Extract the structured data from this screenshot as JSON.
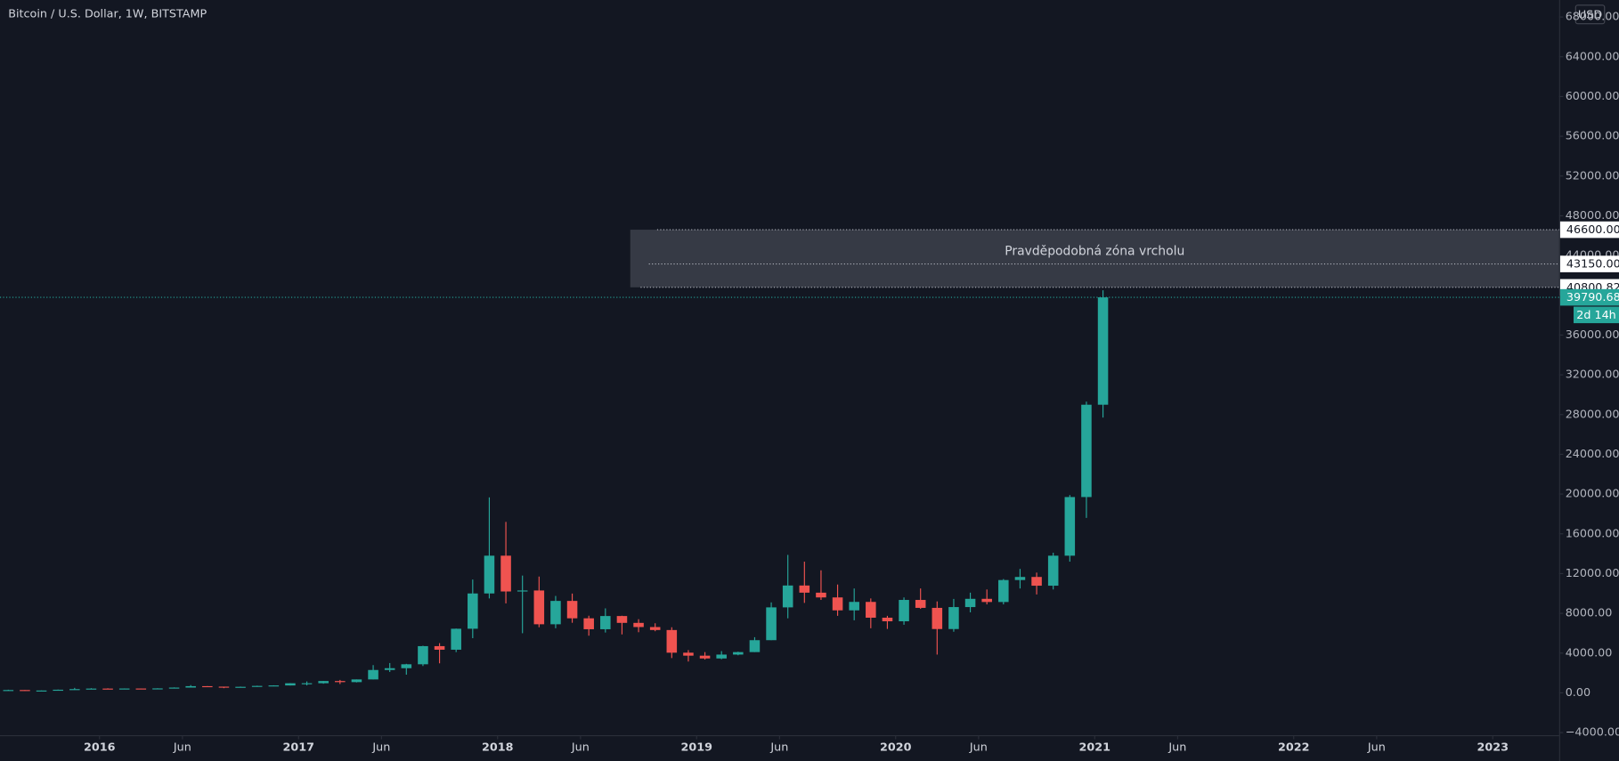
{
  "chart_data": {
    "type": "candlestick",
    "title": "Bitcoin / U.S. Dollar, 1W, BITSTAMP",
    "currency": "USD",
    "x": [
      "2015-07",
      "2015-08",
      "2015-09",
      "2015-10",
      "2015-11",
      "2015-12",
      "2016-01",
      "2016-02",
      "2016-03",
      "2016-04",
      "2016-05",
      "2016-06",
      "2016-07",
      "2016-08",
      "2016-09",
      "2016-10",
      "2016-11",
      "2016-12",
      "2017-01",
      "2017-02",
      "2017-03",
      "2017-04",
      "2017-05",
      "2017-06",
      "2017-07",
      "2017-08",
      "2017-09",
      "2017-10",
      "2017-11",
      "2017-12",
      "2018-01",
      "2018-02",
      "2018-03",
      "2018-04",
      "2018-05",
      "2018-06",
      "2018-07",
      "2018-08",
      "2018-09",
      "2018-10",
      "2018-11",
      "2018-12",
      "2019-01",
      "2019-02",
      "2019-03",
      "2019-04",
      "2019-05",
      "2019-06",
      "2019-07",
      "2019-08",
      "2019-09",
      "2019-10",
      "2019-11",
      "2019-12",
      "2020-01",
      "2020-02",
      "2020-03",
      "2020-04",
      "2020-05",
      "2020-06",
      "2020-07",
      "2020-08",
      "2020-09",
      "2020-10",
      "2020-11",
      "2020-12",
      "2021-01"
    ],
    "open": [
      263,
      284,
      230,
      236,
      314,
      378,
      430,
      368,
      437,
      416,
      448,
      530,
      673,
      624,
      573,
      608,
      700,
      745,
      966,
      968,
      1190,
      1080,
      1350,
      2300,
      2480,
      2875,
      4700,
      4340,
      6450,
      10000,
      13800,
      10200,
      10300,
      6900,
      9250,
      7500,
      6400,
      7730,
      7040,
      6620,
      6320,
      4040,
      3740,
      3460,
      3850,
      4100,
      5300,
      8600,
      10800,
      10080,
      9600,
      8300,
      9150,
      7560,
      7200,
      9350,
      8550,
      6420,
      8630,
      9460,
      9140,
      11350,
      11660,
      10780,
      13800,
      19700,
      28990
    ],
    "high": [
      315,
      285,
      245,
      330,
      500,
      470,
      460,
      445,
      440,
      465,
      550,
      780,
      680,
      625,
      630,
      720,
      760,
      980,
      1150,
      1200,
      1300,
      1350,
      2790,
      3000,
      2920,
      4740,
      5000,
      6470,
      11400,
      19666,
      17200,
      11800,
      11700,
      9750,
      9990,
      7760,
      8500,
      7760,
      7410,
      7000,
      6600,
      4300,
      4100,
      4200,
      4140,
      5600,
      9100,
      13880,
      13200,
      12330,
      10900,
      10500,
      9500,
      7750,
      9600,
      10500,
      9200,
      9450,
      10080,
      10400,
      11450,
      12470,
      12100,
      14100,
      19900,
      29300,
      40500
    ],
    "low": [
      255,
      198,
      225,
      235,
      300,
      350,
      355,
      365,
      405,
      415,
      440,
      530,
      600,
      470,
      565,
      605,
      690,
      740,
      750,
      920,
      890,
      1050,
      1350,
      2100,
      1830,
      2700,
      2970,
      4100,
      5500,
      9500,
      9000,
      6000,
      6600,
      6500,
      7050,
      5750,
      6070,
      5880,
      6100,
      6200,
      3500,
      3150,
      3350,
      3380,
      3780,
      4100,
      5300,
      7500,
      9050,
      9350,
      7750,
      7300,
      6500,
      6430,
      6850,
      8450,
      3850,
      6150,
      8100,
      8900,
      8900,
      10500,
      9900,
      10400,
      13200,
      17600,
      27700
    ],
    "close": [
      284,
      230,
      236,
      314,
      378,
      430,
      368,
      437,
      416,
      448,
      530,
      673,
      624,
      573,
      608,
      700,
      745,
      966,
      968,
      1190,
      1080,
      1350,
      2300,
      2480,
      2875,
      4700,
      4340,
      6450,
      10000,
      13800,
      10200,
      10300,
      6900,
      9250,
      7500,
      6400,
      7730,
      7040,
      6620,
      6320,
      4040,
      3740,
      3460,
      3850,
      4100,
      5300,
      8600,
      10800,
      10080,
      9600,
      8300,
      9150,
      7560,
      7200,
      9350,
      8550,
      6420,
      8630,
      9460,
      9140,
      11350,
      11660,
      10780,
      13800,
      19700,
      28990,
      39790.68
    ],
    "up_color": "#26a69a",
    "down_color": "#ef5350",
    "xlim": [
      "2015-07",
      "2023-05"
    ],
    "xticks": [
      {
        "value": "2016-01",
        "label": "2016"
      },
      {
        "value": "2016-06",
        "label": "Jun"
      },
      {
        "value": "2017-01",
        "label": "2017"
      },
      {
        "value": "2017-06",
        "label": "Jun"
      },
      {
        "value": "2018-01",
        "label": "2018"
      },
      {
        "value": "2018-06",
        "label": "Jun"
      },
      {
        "value": "2019-01",
        "label": "2019"
      },
      {
        "value": "2019-06",
        "label": "Jun"
      },
      {
        "value": "2020-01",
        "label": "2020"
      },
      {
        "value": "2020-06",
        "label": "Jun"
      },
      {
        "value": "2021-01",
        "label": "2021"
      },
      {
        "value": "2021-06",
        "label": "Jun"
      },
      {
        "value": "2022-01",
        "label": "2022"
      },
      {
        "value": "2022-06",
        "label": "Jun"
      },
      {
        "value": "2023-01",
        "label": "2023"
      }
    ],
    "ylim": [
      -4260,
      69710
    ],
    "yticks": [
      {
        "value": -4000,
        "label": "−4000.00"
      },
      {
        "value": 0,
        "label": "0.00"
      },
      {
        "value": 4000,
        "label": "4000.00"
      },
      {
        "value": 8000,
        "label": "8000.00"
      },
      {
        "value": 12000,
        "label": "12000.00"
      },
      {
        "value": 16000,
        "label": "16000.00"
      },
      {
        "value": 20000,
        "label": "20000.00"
      },
      {
        "value": 24000,
        "label": "24000.00"
      },
      {
        "value": 28000,
        "label": "28000.00"
      },
      {
        "value": 32000,
        "label": "32000.00"
      },
      {
        "value": 36000,
        "label": "36000.00"
      },
      {
        "value": 44000,
        "label": "44000.00"
      },
      {
        "value": 48000,
        "label": "48000.00"
      },
      {
        "value": 52000,
        "label": "52000.00"
      },
      {
        "value": 56000,
        "label": "56000.00"
      },
      {
        "value": 60000,
        "label": "60000.00"
      },
      {
        "value": 64000,
        "label": "64000.00"
      },
      {
        "value": 68000,
        "label": "68000.00"
      }
    ],
    "zone": {
      "label": "Pravděpodobná zóna vrcholu",
      "start": "2018-09",
      "levels": [
        {
          "value": 46600,
          "label": "46600.00"
        },
        {
          "value": 43150,
          "label": "43150.00"
        },
        {
          "value": 40800.82,
          "label": "40800.82"
        }
      ]
    },
    "last_price": {
      "value": 39790.68,
      "label": "39790.68",
      "color": "#26a69a"
    },
    "countdown": "2d 14h"
  }
}
